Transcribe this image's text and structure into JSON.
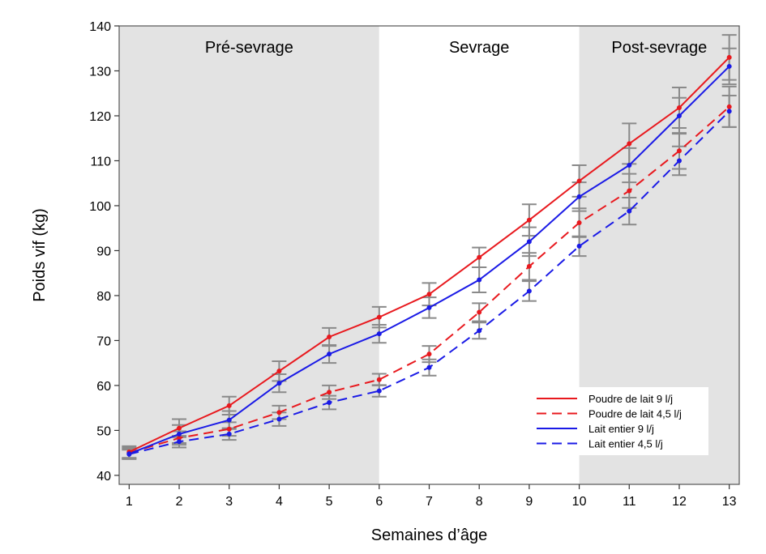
{
  "chart_data": {
    "type": "line",
    "xlabel": "Semaines d’âge",
    "ylabel": "Poids vif (kg)",
    "x": [
      1,
      2,
      3,
      4,
      5,
      6,
      7,
      8,
      9,
      10,
      11,
      12,
      13
    ],
    "xlim": [
      0.8,
      13.2
    ],
    "ylim": [
      38,
      140
    ],
    "yticks": [
      40,
      50,
      60,
      70,
      80,
      90,
      100,
      110,
      120,
      130,
      140
    ],
    "grid": false,
    "legend_position": "bottom-right",
    "phases": [
      {
        "label": "Pré-sevrage",
        "from": 0.8,
        "to": 6,
        "shaded": true,
        "color": "#e3e3e3"
      },
      {
        "label": "Sevrage",
        "from": 6,
        "to": 10,
        "shaded": false,
        "color": "#ffffff"
      },
      {
        "label": "Post-sevrage",
        "from": 10,
        "to": 13.2,
        "shaded": true,
        "color": "#e3e3e3"
      }
    ],
    "series": [
      {
        "name": "Poudre de lait 9 l/j",
        "color": "#e8191e",
        "dash": "solid",
        "values": [
          45.2,
          50.5,
          55.5,
          63.2,
          70.8,
          75.2,
          80.3,
          88.5,
          96.8,
          105.5,
          113.8,
          121.8,
          133.0
        ],
        "errors": [
          1.3,
          2.0,
          2.0,
          2.2,
          2.0,
          2.3,
          2.5,
          2.2,
          3.5,
          3.5,
          4.5,
          4.5,
          5.0
        ]
      },
      {
        "name": "Poudre de lait 4,5 l/j",
        "color": "#e8191e",
        "dash": "dashed",
        "values": [
          45.0,
          48.3,
          50.3,
          54.0,
          58.5,
          61.3,
          67.0,
          76.3,
          86.5,
          96.2,
          103.3,
          112.2,
          122.0
        ],
        "errors": [
          1.2,
          1.5,
          1.5,
          1.5,
          1.5,
          1.3,
          1.8,
          2.0,
          3.0,
          3.2,
          3.8,
          4.0,
          4.5
        ]
      },
      {
        "name": "Lait entier 9 l/j",
        "color": "#1a1ae6",
        "dash": "solid",
        "values": [
          44.8,
          49.2,
          52.3,
          60.5,
          67.0,
          71.5,
          77.3,
          83.5,
          92.0,
          102.0,
          109.0,
          120.0,
          131.0
        ],
        "errors": [
          1.2,
          2.0,
          2.0,
          2.0,
          2.0,
          2.0,
          2.3,
          2.8,
          3.2,
          3.2,
          3.8,
          4.0,
          4.0
        ]
      },
      {
        "name": "Lait entier 4,5 l/j",
        "color": "#1a1ae6",
        "dash": "dashed",
        "values": [
          44.7,
          47.5,
          49.2,
          52.5,
          56.2,
          58.8,
          64.0,
          72.2,
          81.0,
          91.0,
          98.8,
          110.0,
          121.0
        ],
        "errors": [
          1.0,
          1.3,
          1.3,
          1.5,
          1.5,
          1.3,
          1.8,
          1.8,
          2.2,
          2.2,
          3.0,
          3.2,
          3.5
        ]
      }
    ]
  }
}
